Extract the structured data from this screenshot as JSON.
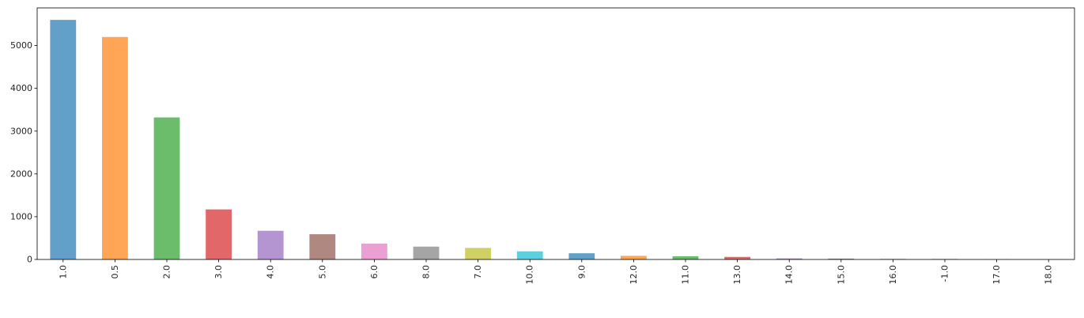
{
  "chart_data": {
    "type": "bar",
    "categories": [
      "1.0",
      "0.5",
      "2.0",
      "3.0",
      "4.0",
      "5.0",
      "6.0",
      "8.0",
      "7.0",
      "10.0",
      "9.0",
      "12.0",
      "11.0",
      "13.0",
      "14.0",
      "15.0",
      "16.0",
      "-1.0",
      "17.0",
      "18.0"
    ],
    "values": [
      5600,
      5200,
      3320,
      1170,
      670,
      590,
      370,
      300,
      270,
      190,
      145,
      85,
      75,
      60,
      25,
      20,
      15,
      12,
      8,
      3
    ],
    "colors": [
      "#1f77b4",
      "#ff7f0e",
      "#2ca02c",
      "#d62728",
      "#9467bd",
      "#8c564b",
      "#e377c2",
      "#7f7f7f",
      "#bcbd22",
      "#17becf"
    ],
    "bar_alpha": 0.7,
    "yticks": [
      0,
      1000,
      2000,
      3000,
      4000,
      5000
    ],
    "ylim": [
      0,
      5880
    ],
    "title": "",
    "xlabel": "",
    "ylabel": "",
    "grid": false,
    "legend": false
  }
}
